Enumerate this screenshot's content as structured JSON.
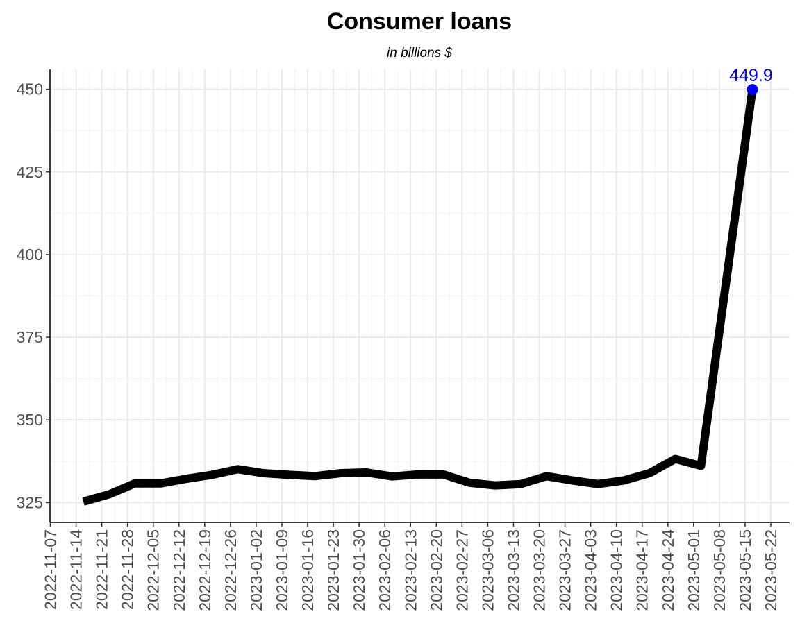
{
  "chart_data": {
    "type": "line",
    "title": "Consumer loans",
    "subtitle": "in billions $",
    "xlabel": "",
    "ylabel": "",
    "x_ticks": [
      "2022-11-07",
      "2022-11-14",
      "2022-11-21",
      "2022-11-28",
      "2022-12-05",
      "2022-12-12",
      "2022-12-19",
      "2022-12-26",
      "2023-01-02",
      "2023-01-09",
      "2023-01-16",
      "2023-01-23",
      "2023-01-30",
      "2023-02-06",
      "2023-02-13",
      "2023-02-20",
      "2023-02-27",
      "2023-03-06",
      "2023-03-13",
      "2023-03-20",
      "2023-03-27",
      "2023-04-03",
      "2023-04-10",
      "2023-04-17",
      "2023-04-24",
      "2023-05-01",
      "2023-05-08",
      "2023-05-15",
      "2023-05-22"
    ],
    "y_ticks": [
      325,
      350,
      375,
      400,
      425,
      450
    ],
    "ylim": [
      319,
      456
    ],
    "grid": true,
    "legend": "none",
    "line_color": "#000000",
    "highlight_color": "#0000ff",
    "series": [
      {
        "x": [
          "2022-11-16",
          "2022-11-23",
          "2022-11-30",
          "2022-12-07",
          "2022-12-14",
          "2022-12-21",
          "2022-12-28",
          "2023-01-04",
          "2023-01-11",
          "2023-01-18",
          "2023-01-25",
          "2023-02-01",
          "2023-02-08",
          "2023-02-15",
          "2023-02-22",
          "2023-03-01",
          "2023-03-08",
          "2023-03-15",
          "2023-03-22",
          "2023-03-29",
          "2023-04-05",
          "2023-04-12",
          "2023-04-19",
          "2023-04-26",
          "2023-05-03",
          "2023-05-17"
        ],
        "values": [
          325.3,
          327.5,
          330.8,
          330.8,
          332.2,
          333.4,
          335.1,
          333.9,
          333.4,
          333.0,
          333.9,
          334.1,
          332.9,
          333.5,
          333.5,
          331.0,
          330.2,
          330.6,
          333.0,
          331.7,
          330.6,
          331.7,
          333.9,
          338.2,
          336.1,
          449.9
        ]
      }
    ],
    "annotations": [
      {
        "x": "2023-05-17",
        "y": 449.9,
        "text": "449.9"
      }
    ]
  }
}
